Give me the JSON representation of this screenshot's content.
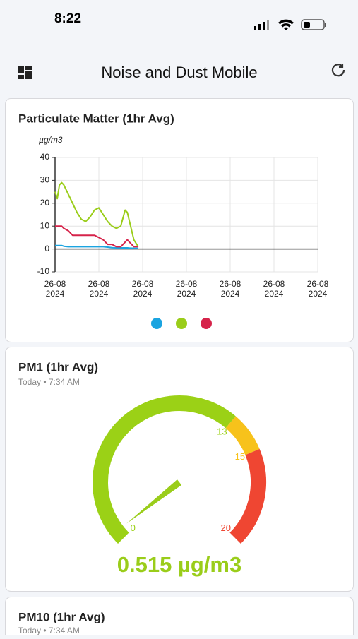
{
  "status_bar": {
    "time": "8:22"
  },
  "header": {
    "title": "Noise and Dust Mobile"
  },
  "chart_data": [
    {
      "type": "line",
      "title": "Particulate Matter (1hr Avg)",
      "y_label": "µg/m3",
      "x": [
        0,
        0.05,
        0.1,
        0.15,
        0.2,
        0.3,
        0.4,
        0.5,
        0.6,
        0.7,
        0.8,
        0.9,
        1.0,
        1.1,
        1.2,
        1.3,
        1.4,
        1.5,
        1.6,
        1.65,
        1.7,
        1.8,
        1.9
      ],
      "series": [
        {
          "color": "#1ba4e0",
          "values": [
            1.5,
            1.5,
            1.5,
            1.5,
            1.2,
            1,
            1,
            1,
            1,
            1,
            1,
            1,
            1,
            1,
            0.8,
            0.6,
            0.5,
            0.5,
            0.5,
            0.5,
            0.4,
            0.3,
            0.3
          ]
        },
        {
          "color": "#9acd1a",
          "values": [
            25,
            22,
            28,
            29,
            28,
            24,
            20,
            16,
            13,
            12,
            14,
            17,
            18,
            15,
            12,
            10,
            9,
            10,
            17,
            16,
            12,
            4,
            1
          ]
        },
        {
          "color": "#d6234a",
          "values": [
            10,
            10,
            10,
            10,
            9,
            8,
            6,
            6,
            6,
            6,
            6,
            6,
            5,
            4,
            2,
            2,
            1,
            1,
            3,
            4,
            3,
            1,
            1
          ]
        }
      ],
      "xlim": [
        0,
        6
      ],
      "xticks": [
        {
          "value": 0,
          "label": "26-08 2024"
        },
        {
          "value": 1,
          "label": "26-08 2024"
        },
        {
          "value": 2,
          "label": "26-08 2024"
        },
        {
          "value": 3,
          "label": "26-08 2024"
        },
        {
          "value": 4,
          "label": "26-08 2024"
        },
        {
          "value": 5,
          "label": "26-08 2024"
        },
        {
          "value": 6,
          "label": "26-08 2024"
        }
      ],
      "ylim": [
        -10,
        40
      ],
      "yticks": [
        -10,
        0,
        10,
        20,
        30,
        40
      ],
      "grid": true
    },
    {
      "type": "gauge",
      "title": "PM1 (1hr Avg)",
      "subtitle": "Today • 7:34 AM",
      "value": 0.515,
      "value_label": "0.515 µg/m3",
      "color": "#9acd1a",
      "range": [
        0,
        20
      ],
      "ticks": [
        0,
        13,
        15,
        20
      ],
      "bands": [
        {
          "to": 13,
          "color": "#9bd116"
        },
        {
          "to": 15,
          "color": "#f7c21b"
        },
        {
          "to": 20,
          "color": "#ef4632"
        }
      ]
    }
  ],
  "cards": [
    {
      "title": "PM10 (1hr Avg)",
      "subtitle": "Today • 7:34 AM"
    }
  ]
}
